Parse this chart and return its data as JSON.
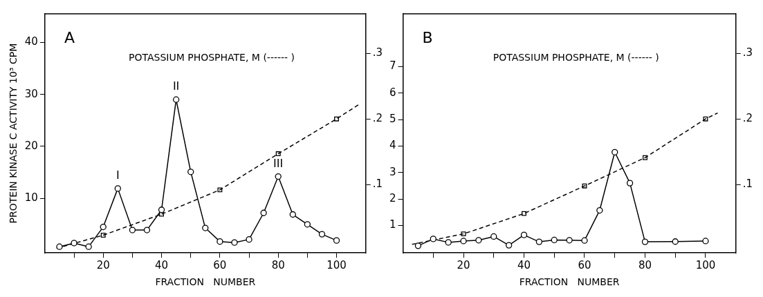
{
  "chart_data": [
    {
      "type": "line",
      "xlabel": "FRACTION   NUMBER",
      "ylabel": "PROTEIN KINASE C ACTIVITY 10³ CPM",
      "xlim": [
        0,
        110
      ],
      "xticks": [
        {
          "value": 10,
          "label": null
        },
        20,
        {
          "value": 30,
          "label": null
        },
        40,
        {
          "value": 50,
          "label": null
        },
        60,
        {
          "value": 70,
          "label": null
        },
        80,
        {
          "value": 90,
          "label": null
        },
        100
      ],
      "ylim": [
        -0.5,
        45.5
      ],
      "yticks": [
        10,
        20,
        30,
        40
      ],
      "y2lim": [
        -0.004,
        0.36
      ],
      "y2ticks": [
        {
          "value": 0.1,
          "label": ".1"
        },
        {
          "value": 0.2,
          "label": ".2"
        },
        {
          "value": 0.3,
          "label": ".3"
        }
      ],
      "grid": false,
      "legend": false,
      "annotations": [
        "A",
        "POTASSIUM PHOSPHATE, M (------ )",
        {
          "text": "I",
          "x": 25,
          "y": 11.9
        },
        {
          "text": "II",
          "x": 45,
          "y": 29.0
        },
        {
          "text": "III",
          "x": 80,
          "y": 14.2
        }
      ],
      "series": [
        {
          "type": "line",
          "color": "#000000",
          "marker": "circle",
          "line_style": "solid",
          "x": [
            5,
            10,
            15,
            20,
            25,
            30,
            35,
            40,
            45,
            50,
            55,
            60,
            65,
            70,
            75,
            80,
            85,
            90,
            95,
            100
          ],
          "values": [
            0.7,
            1.4,
            0.7,
            4.5,
            11.9,
            3.9,
            3.9,
            7.8,
            29.0,
            15.1,
            4.3,
            1.7,
            1.5,
            2.1,
            7.2,
            14.2,
            6.9,
            5.0,
            3.1,
            1.9
          ]
        },
        {
          "type": "line",
          "color": "#000000",
          "marker": "none",
          "line_style": "dashed",
          "axis": "y2",
          "x": [
            4,
            20,
            40,
            60,
            80,
            100,
            108
          ],
          "values": [
            0.003,
            0.023,
            0.055,
            0.092,
            0.147,
            0.2,
            0.223
          ]
        },
        {
          "type": "scatter",
          "color": "#000000",
          "marker": "square",
          "axis": "y2",
          "x": [
            20,
            40,
            60,
            80,
            100
          ],
          "values": [
            0.023,
            0.055,
            0.092,
            0.147,
            0.2
          ]
        }
      ]
    },
    {
      "type": "line",
      "xlabel": "FRACTION   NUMBER",
      "xlim": [
        0,
        110
      ],
      "xticks": [
        {
          "value": 10,
          "label": null
        },
        20,
        {
          "value": 30,
          "label": null
        },
        40,
        {
          "value": 50,
          "label": null
        },
        60,
        {
          "value": 70,
          "label": null
        },
        80,
        {
          "value": 90,
          "label": null
        },
        100
      ],
      "ylim": [
        -0.04,
        9
      ],
      "yticks": [
        1,
        2,
        3,
        4,
        5,
        6,
        7
      ],
      "y2lim": [
        -0.004,
        0.36
      ],
      "y2ticks": [
        {
          "value": 0.1,
          "label": ".1"
        },
        {
          "value": 0.2,
          "label": ".2"
        },
        {
          "value": 0.3,
          "label": ".3"
        }
      ],
      "grid": false,
      "legend": false,
      "annotations": [
        "B",
        "POTASSIUM PHOSPHATE, M (------ )"
      ],
      "series": [
        {
          "type": "line",
          "color": "#000000",
          "marker": "circle",
          "line_style": "solid",
          "x": [
            5,
            10,
            15,
            20,
            25,
            30,
            35,
            40,
            45,
            50,
            55,
            60,
            65,
            70,
            75,
            80,
            90,
            100
          ],
          "values": [
            0.23,
            0.49,
            0.36,
            0.41,
            0.44,
            0.58,
            0.25,
            0.64,
            0.38,
            0.45,
            0.44,
            0.43,
            1.57,
            3.77,
            2.6,
            0.38,
            0.39,
            0.41
          ]
        },
        {
          "type": "line",
          "color": "#000000",
          "marker": "none",
          "line_style": "dashed",
          "axis": "y2",
          "x": [
            3,
            20,
            40,
            60,
            80,
            100,
            104
          ],
          "values": [
            0.009,
            0.025,
            0.056,
            0.098,
            0.141,
            0.2,
            0.209
          ]
        },
        {
          "type": "scatter",
          "color": "#000000",
          "marker": "square",
          "axis": "y2",
          "x": [
            20,
            40,
            60,
            80,
            100
          ],
          "values": [
            0.025,
            0.056,
            0.098,
            0.141,
            0.2
          ]
        }
      ]
    }
  ]
}
